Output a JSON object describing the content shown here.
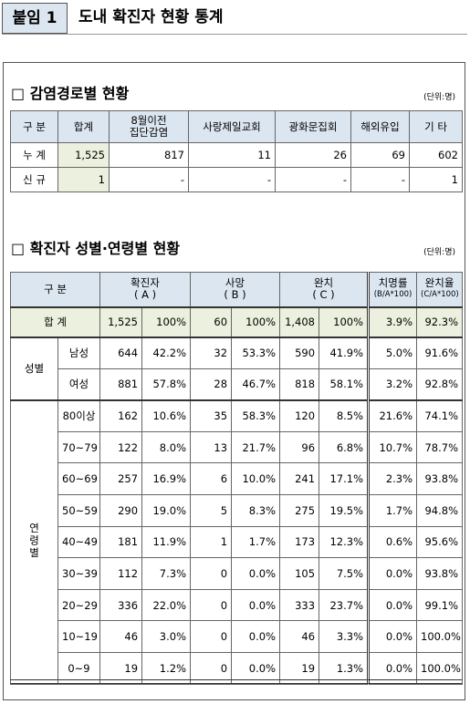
{
  "header": {
    "label": "붙임 1",
    "title": "도내 확진자 현황 통계"
  },
  "route_section": {
    "title": "□ 감염경로별 현황",
    "unit": "(단위:명)",
    "columns": [
      "구 분",
      "합계",
      "8월이전\n집단감염",
      "사랑제일교회",
      "광화문집회",
      "해외유입",
      "기 타"
    ],
    "rows": [
      [
        "누 계",
        "1,525",
        "817",
        "11",
        "26",
        "69",
        "602"
      ],
      [
        "신 규",
        "1",
        "-",
        "-",
        "-",
        "-",
        "1"
      ]
    ]
  },
  "demo_section": {
    "title": "□ 확진자 성별·연령별 현황",
    "unit": "(단위:명)",
    "corner": "구 분",
    "columns": [
      {
        "name": "확진자",
        "sub": "( A )"
      },
      {
        "name": "사망",
        "sub": "( B )"
      },
      {
        "name": "완치",
        "sub": "( C )"
      },
      {
        "name": "치명률",
        "sub": "(B/A*100)"
      },
      {
        "name": "완치율",
        "sub": "(C/A*100)"
      }
    ],
    "total": {
      "label": "합 계",
      "values": [
        "1,525",
        "100%",
        "60",
        "100%",
        "1,408",
        "100%",
        "3.9%",
        "92.3%"
      ]
    },
    "groups": [
      {
        "label": "성별",
        "rows": [
          {
            "label": "남성",
            "values": [
              "644",
              "42.2%",
              "32",
              "53.3%",
              "590",
              "41.9%",
              "5.0%",
              "91.6%"
            ]
          },
          {
            "label": "여성",
            "values": [
              "881",
              "57.8%",
              "28",
              "46.7%",
              "818",
              "58.1%",
              "3.2%",
              "92.8%"
            ]
          }
        ]
      },
      {
        "label": "연령별",
        "rows": [
          {
            "label": "80이상",
            "values": [
              "162",
              "10.6%",
              "35",
              "58.3%",
              "120",
              "8.5%",
              "21.6%",
              "74.1%"
            ]
          },
          {
            "label": "70~79",
            "values": [
              "122",
              "8.0%",
              "13",
              "21.7%",
              "96",
              "6.8%",
              "10.7%",
              "78.7%"
            ]
          },
          {
            "label": "60~69",
            "values": [
              "257",
              "16.9%",
              "6",
              "10.0%",
              "241",
              "17.1%",
              "2.3%",
              "93.8%"
            ]
          },
          {
            "label": "50~59",
            "values": [
              "290",
              "19.0%",
              "5",
              "8.3%",
              "275",
              "19.5%",
              "1.7%",
              "94.8%"
            ]
          },
          {
            "label": "40~49",
            "values": [
              "181",
              "11.9%",
              "1",
              "1.7%",
              "173",
              "12.3%",
              "0.6%",
              "95.6%"
            ]
          },
          {
            "label": "30~39",
            "values": [
              "112",
              "7.3%",
              "0",
              "0.0%",
              "105",
              "7.5%",
              "0.0%",
              "93.8%"
            ]
          },
          {
            "label": "20~29",
            "values": [
              "336",
              "22.0%",
              "0",
              "0.0%",
              "333",
              "23.7%",
              "0.0%",
              "99.1%"
            ]
          },
          {
            "label": "10~19",
            "values": [
              "46",
              "3.0%",
              "0",
              "0.0%",
              "46",
              "3.3%",
              "0.0%",
              "100.0%"
            ]
          },
          {
            "label": "0~9",
            "values": [
              "19",
              "1.2%",
              "0",
              "0.0%",
              "19",
              "1.3%",
              "0.0%",
              "100.0%"
            ]
          }
        ]
      }
    ]
  }
}
